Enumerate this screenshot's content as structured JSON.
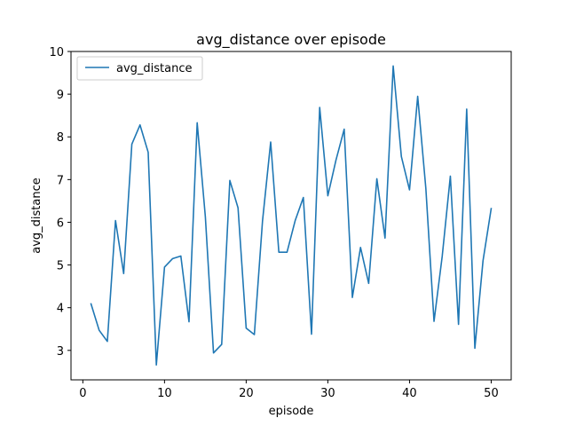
{
  "chart_data": {
    "type": "line",
    "title": "avg_distance over episode",
    "xlabel": "episode",
    "ylabel": "avg_distance",
    "xlim": [
      -1.45,
      52.45
    ],
    "ylim": [
      2.31,
      10.0
    ],
    "xticks": [
      0,
      10,
      20,
      30,
      40,
      50
    ],
    "yticks": [
      3,
      4,
      5,
      6,
      7,
      8,
      9,
      10
    ],
    "grid": false,
    "legend": {
      "placement": "top-left",
      "entries": [
        "avg_distance"
      ]
    },
    "series": [
      {
        "name": "avg_distance",
        "color": "#1f77b4",
        "x": [
          1,
          2,
          3,
          4,
          5,
          6,
          7,
          8,
          9,
          10,
          11,
          12,
          13,
          14,
          15,
          16,
          17,
          18,
          19,
          20,
          21,
          22,
          23,
          24,
          25,
          26,
          27,
          28,
          29,
          30,
          31,
          32,
          33,
          34,
          35,
          36,
          37,
          38,
          39,
          40,
          41,
          42,
          43,
          44,
          45,
          46,
          47,
          48,
          49,
          50
        ],
        "y": [
          4.09,
          3.47,
          3.21,
          6.04,
          4.8,
          7.83,
          8.28,
          7.64,
          2.66,
          4.95,
          5.15,
          5.21,
          3.67,
          8.33,
          6.13,
          2.94,
          3.14,
          6.98,
          6.34,
          3.52,
          3.37,
          6.03,
          7.88,
          5.3,
          5.3,
          6.04,
          6.58,
          3.38,
          8.69,
          6.62,
          7.46,
          8.18,
          4.24,
          5.41,
          4.57,
          7.02,
          5.63,
          9.66,
          7.54,
          6.76,
          8.95,
          6.79,
          3.68,
          5.2,
          7.08,
          3.61,
          8.65,
          3.05,
          5.1,
          6.32
        ]
      }
    ]
  }
}
